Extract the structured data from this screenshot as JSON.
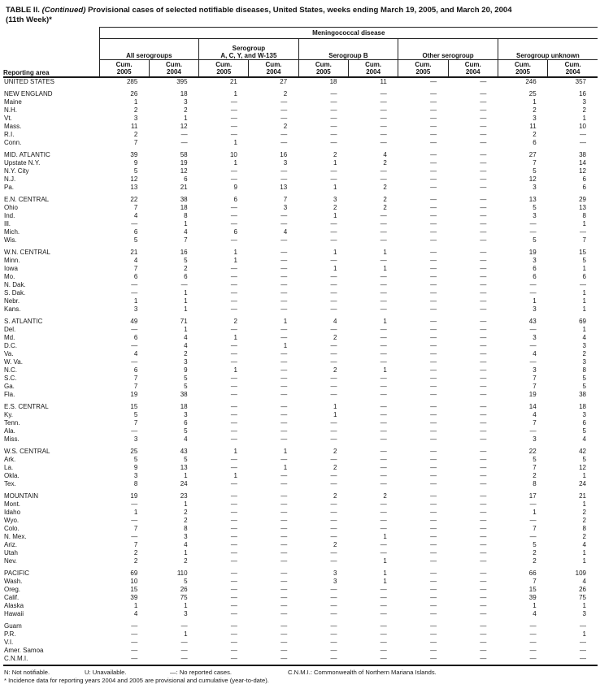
{
  "title": {
    "table_label": "TABLE II.",
    "continued": "(Continued)",
    "text": "Provisional cases of selected notifiable diseases, United States, weeks ending March 19, 2005, and March 20, 2004",
    "week": "(11th Week)*"
  },
  "header": {
    "disease": "Meningococcal disease",
    "reporting_area": "Reporting area",
    "groups": [
      {
        "line1": "",
        "line2": "All serogroups"
      },
      {
        "line1": "Serogroup",
        "line2": "A, C, Y, and W-135"
      },
      {
        "line1": "",
        "line2": "Serogroup B"
      },
      {
        "line1": "",
        "line2": "Other serogroup"
      },
      {
        "line1": "",
        "line2": "Serogroup unknown"
      }
    ],
    "cum_label": "Cum.",
    "years": [
      "2005",
      "2004"
    ]
  },
  "sections": [
    {
      "rows": [
        {
          "area": "UNITED STATES",
          "values": [
            "285",
            "395",
            "21",
            "27",
            "18",
            "11",
            "—",
            "—",
            "246",
            "357"
          ]
        }
      ]
    },
    {
      "rows": [
        {
          "area": "NEW ENGLAND",
          "values": [
            "26",
            "18",
            "1",
            "2",
            "—",
            "—",
            "—",
            "—",
            "25",
            "16"
          ]
        },
        {
          "area": "Maine",
          "values": [
            "1",
            "3",
            "—",
            "—",
            "—",
            "—",
            "—",
            "—",
            "1",
            "3"
          ]
        },
        {
          "area": "N.H.",
          "values": [
            "2",
            "2",
            "—",
            "—",
            "—",
            "—",
            "—",
            "—",
            "2",
            "2"
          ]
        },
        {
          "area": "Vt.",
          "values": [
            "3",
            "1",
            "—",
            "—",
            "—",
            "—",
            "—",
            "—",
            "3",
            "1"
          ]
        },
        {
          "area": "Mass.",
          "values": [
            "11",
            "12",
            "—",
            "2",
            "—",
            "—",
            "—",
            "—",
            "11",
            "10"
          ]
        },
        {
          "area": "R.I.",
          "values": [
            "2",
            "—",
            "—",
            "—",
            "—",
            "—",
            "—",
            "—",
            "2",
            "—"
          ]
        },
        {
          "area": "Conn.",
          "values": [
            "7",
            "—",
            "1",
            "—",
            "—",
            "—",
            "—",
            "—",
            "6",
            "—"
          ]
        }
      ]
    },
    {
      "rows": [
        {
          "area": "MID. ATLANTIC",
          "values": [
            "39",
            "58",
            "10",
            "16",
            "2",
            "4",
            "—",
            "—",
            "27",
            "38"
          ]
        },
        {
          "area": "Upstate N.Y.",
          "values": [
            "9",
            "19",
            "1",
            "3",
            "1",
            "2",
            "—",
            "—",
            "7",
            "14"
          ]
        },
        {
          "area": "N.Y. City",
          "values": [
            "5",
            "12",
            "—",
            "—",
            "—",
            "—",
            "—",
            "—",
            "5",
            "12"
          ]
        },
        {
          "area": "N.J.",
          "values": [
            "12",
            "6",
            "—",
            "—",
            "—",
            "—",
            "—",
            "—",
            "12",
            "6"
          ]
        },
        {
          "area": "Pa.",
          "values": [
            "13",
            "21",
            "9",
            "13",
            "1",
            "2",
            "—",
            "—",
            "3",
            "6"
          ]
        }
      ]
    },
    {
      "rows": [
        {
          "area": "E.N. CENTRAL",
          "values": [
            "22",
            "38",
            "6",
            "7",
            "3",
            "2",
            "—",
            "—",
            "13",
            "29"
          ]
        },
        {
          "area": "Ohio",
          "values": [
            "7",
            "18",
            "—",
            "3",
            "2",
            "2",
            "—",
            "—",
            "5",
            "13"
          ]
        },
        {
          "area": "Ind.",
          "values": [
            "4",
            "8",
            "—",
            "—",
            "1",
            "—",
            "—",
            "—",
            "3",
            "8"
          ]
        },
        {
          "area": "Ill.",
          "values": [
            "—",
            "1",
            "—",
            "—",
            "—",
            "—",
            "—",
            "—",
            "—",
            "1"
          ]
        },
        {
          "area": "Mich.",
          "values": [
            "6",
            "4",
            "6",
            "4",
            "—",
            "—",
            "—",
            "—",
            "—",
            "—"
          ]
        },
        {
          "area": "Wis.",
          "values": [
            "5",
            "7",
            "—",
            "—",
            "—",
            "—",
            "—",
            "—",
            "5",
            "7"
          ]
        }
      ]
    },
    {
      "rows": [
        {
          "area": "W.N. CENTRAL",
          "values": [
            "21",
            "16",
            "1",
            "—",
            "1",
            "1",
            "—",
            "—",
            "19",
            "15"
          ]
        },
        {
          "area": "Minn.",
          "values": [
            "4",
            "5",
            "1",
            "—",
            "—",
            "—",
            "—",
            "—",
            "3",
            "5"
          ]
        },
        {
          "area": "Iowa",
          "values": [
            "7",
            "2",
            "—",
            "—",
            "1",
            "1",
            "—",
            "—",
            "6",
            "1"
          ]
        },
        {
          "area": "Mo.",
          "values": [
            "6",
            "6",
            "—",
            "—",
            "—",
            "—",
            "—",
            "—",
            "6",
            "6"
          ]
        },
        {
          "area": "N. Dak.",
          "values": [
            "—",
            "—",
            "—",
            "—",
            "—",
            "—",
            "—",
            "—",
            "—",
            "—"
          ]
        },
        {
          "area": "S. Dak.",
          "values": [
            "—",
            "1",
            "—",
            "—",
            "—",
            "—",
            "—",
            "—",
            "—",
            "1"
          ]
        },
        {
          "area": "Nebr.",
          "values": [
            "1",
            "1",
            "—",
            "—",
            "—",
            "—",
            "—",
            "—",
            "1",
            "1"
          ]
        },
        {
          "area": "Kans.",
          "values": [
            "3",
            "1",
            "—",
            "—",
            "—",
            "—",
            "—",
            "—",
            "3",
            "1"
          ]
        }
      ]
    },
    {
      "rows": [
        {
          "area": "S. ATLANTIC",
          "values": [
            "49",
            "71",
            "2",
            "1",
            "4",
            "1",
            "—",
            "—",
            "43",
            "69"
          ]
        },
        {
          "area": "Del.",
          "values": [
            "—",
            "1",
            "—",
            "—",
            "—",
            "—",
            "—",
            "—",
            "—",
            "1"
          ]
        },
        {
          "area": "Md.",
          "values": [
            "6",
            "4",
            "1",
            "—",
            "2",
            "—",
            "—",
            "—",
            "3",
            "4"
          ]
        },
        {
          "area": "D.C.",
          "values": [
            "—",
            "4",
            "—",
            "1",
            "—",
            "—",
            "—",
            "—",
            "—",
            "3"
          ]
        },
        {
          "area": "Va.",
          "values": [
            "4",
            "2",
            "—",
            "—",
            "—",
            "—",
            "—",
            "—",
            "4",
            "2"
          ]
        },
        {
          "area": "W. Va.",
          "values": [
            "—",
            "3",
            "—",
            "—",
            "—",
            "—",
            "—",
            "—",
            "—",
            "3"
          ]
        },
        {
          "area": "N.C.",
          "values": [
            "6",
            "9",
            "1",
            "—",
            "2",
            "1",
            "—",
            "—",
            "3",
            "8"
          ]
        },
        {
          "area": "S.C.",
          "values": [
            "7",
            "5",
            "—",
            "—",
            "—",
            "—",
            "—",
            "—",
            "7",
            "5"
          ]
        },
        {
          "area": "Ga.",
          "values": [
            "7",
            "5",
            "—",
            "—",
            "—",
            "—",
            "—",
            "—",
            "7",
            "5"
          ]
        },
        {
          "area": "Fla.",
          "values": [
            "19",
            "38",
            "—",
            "—",
            "—",
            "—",
            "—",
            "—",
            "19",
            "38"
          ]
        }
      ]
    },
    {
      "rows": [
        {
          "area": "E.S. CENTRAL",
          "values": [
            "15",
            "18",
            "—",
            "—",
            "1",
            "—",
            "—",
            "—",
            "14",
            "18"
          ]
        },
        {
          "area": "Ky.",
          "values": [
            "5",
            "3",
            "—",
            "—",
            "1",
            "—",
            "—",
            "—",
            "4",
            "3"
          ]
        },
        {
          "area": "Tenn.",
          "values": [
            "7",
            "6",
            "—",
            "—",
            "—",
            "—",
            "—",
            "—",
            "7",
            "6"
          ]
        },
        {
          "area": "Ala.",
          "values": [
            "—",
            "5",
            "—",
            "—",
            "—",
            "—",
            "—",
            "—",
            "—",
            "5"
          ]
        },
        {
          "area": "Miss.",
          "values": [
            "3",
            "4",
            "—",
            "—",
            "—",
            "—",
            "—",
            "—",
            "3",
            "4"
          ]
        }
      ]
    },
    {
      "rows": [
        {
          "area": "W.S. CENTRAL",
          "values": [
            "25",
            "43",
            "1",
            "1",
            "2",
            "—",
            "—",
            "—",
            "22",
            "42"
          ]
        },
        {
          "area": "Ark.",
          "values": [
            "5",
            "5",
            "—",
            "—",
            "—",
            "—",
            "—",
            "—",
            "5",
            "5"
          ]
        },
        {
          "area": "La.",
          "values": [
            "9",
            "13",
            "—",
            "1",
            "2",
            "—",
            "—",
            "—",
            "7",
            "12"
          ]
        },
        {
          "area": "Okla.",
          "values": [
            "3",
            "1",
            "1",
            "—",
            "—",
            "—",
            "—",
            "—",
            "2",
            "1"
          ]
        },
        {
          "area": "Tex.",
          "values": [
            "8",
            "24",
            "—",
            "—",
            "—",
            "—",
            "—",
            "—",
            "8",
            "24"
          ]
        }
      ]
    },
    {
      "rows": [
        {
          "area": "MOUNTAIN",
          "values": [
            "19",
            "23",
            "—",
            "—",
            "2",
            "2",
            "—",
            "—",
            "17",
            "21"
          ]
        },
        {
          "area": "Mont.",
          "values": [
            "—",
            "1",
            "—",
            "—",
            "—",
            "—",
            "—",
            "—",
            "—",
            "1"
          ]
        },
        {
          "area": "Idaho",
          "values": [
            "1",
            "2",
            "—",
            "—",
            "—",
            "—",
            "—",
            "—",
            "1",
            "2"
          ]
        },
        {
          "area": "Wyo.",
          "values": [
            "—",
            "2",
            "—",
            "—",
            "—",
            "—",
            "—",
            "—",
            "—",
            "2"
          ]
        },
        {
          "area": "Colo.",
          "values": [
            "7",
            "8",
            "—",
            "—",
            "—",
            "—",
            "—",
            "—",
            "7",
            "8"
          ]
        },
        {
          "area": "N. Mex.",
          "values": [
            "—",
            "3",
            "—",
            "—",
            "—",
            "1",
            "—",
            "—",
            "—",
            "2"
          ]
        },
        {
          "area": "Ariz.",
          "values": [
            "7",
            "4",
            "—",
            "—",
            "2",
            "—",
            "—",
            "—",
            "5",
            "4"
          ]
        },
        {
          "area": "Utah",
          "values": [
            "2",
            "1",
            "—",
            "—",
            "—",
            "—",
            "—",
            "—",
            "2",
            "1"
          ]
        },
        {
          "area": "Nev.",
          "values": [
            "2",
            "2",
            "—",
            "—",
            "—",
            "1",
            "—",
            "—",
            "2",
            "1"
          ]
        }
      ]
    },
    {
      "rows": [
        {
          "area": "PACIFIC",
          "values": [
            "69",
            "110",
            "—",
            "—",
            "3",
            "1",
            "—",
            "—",
            "66",
            "109"
          ]
        },
        {
          "area": "Wash.",
          "values": [
            "10",
            "5",
            "—",
            "—",
            "3",
            "1",
            "—",
            "—",
            "7",
            "4"
          ]
        },
        {
          "area": "Oreg.",
          "values": [
            "15",
            "26",
            "—",
            "—",
            "—",
            "—",
            "—",
            "—",
            "15",
            "26"
          ]
        },
        {
          "area": "Calif.",
          "values": [
            "39",
            "75",
            "—",
            "—",
            "—",
            "—",
            "—",
            "—",
            "39",
            "75"
          ]
        },
        {
          "area": "Alaska",
          "values": [
            "1",
            "1",
            "—",
            "—",
            "—",
            "—",
            "—",
            "—",
            "1",
            "1"
          ]
        },
        {
          "area": "Hawaii",
          "values": [
            "4",
            "3",
            "—",
            "—",
            "—",
            "—",
            "—",
            "—",
            "4",
            "3"
          ]
        }
      ]
    },
    {
      "rows": [
        {
          "area": "Guam",
          "values": [
            "—",
            "—",
            "—",
            "—",
            "—",
            "—",
            "—",
            "—",
            "—",
            "—"
          ]
        },
        {
          "area": "P.R.",
          "values": [
            "—",
            "1",
            "—",
            "—",
            "—",
            "—",
            "—",
            "—",
            "—",
            "1"
          ]
        },
        {
          "area": "V.I.",
          "values": [
            "—",
            "—",
            "—",
            "—",
            "—",
            "—",
            "—",
            "—",
            "—",
            "—"
          ]
        },
        {
          "area": "Amer. Samoa",
          "values": [
            "—",
            "—",
            "—",
            "—",
            "—",
            "—",
            "—",
            "—",
            "—",
            "—"
          ]
        },
        {
          "area": "C.N.M.I.",
          "values": [
            "—",
            "—",
            "—",
            "—",
            "—",
            "—",
            "—",
            "—",
            "—",
            "—"
          ]
        }
      ]
    }
  ],
  "footnotes": {
    "n": "N: Not notifiable.",
    "u": "U: Unavailable.",
    "dash": "—: No reported cases.",
    "cnmi": "C.N.M.I.: Commonwealth of Northern Mariana Islands.",
    "asterisk": "* Incidence data for reporting years 2004 and 2005 are provisional and cumulative (year-to-date)."
  }
}
